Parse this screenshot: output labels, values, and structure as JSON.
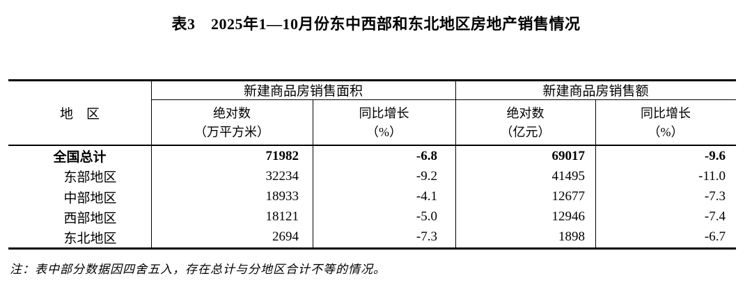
{
  "title": "表3　2025年1—10月份东中西部和东北地区房地产销售情况",
  "table": {
    "region_header": "地　区",
    "groups": [
      {
        "label": "新建商品房销售面积",
        "columns": [
          {
            "name": "绝对数",
            "unit": "（万平方米）"
          },
          {
            "name": "同比增长",
            "unit": "（%）"
          }
        ]
      },
      {
        "label": "新建商品房销售额",
        "columns": [
          {
            "name": "绝对数",
            "unit": "（亿元）"
          },
          {
            "name": "同比增长",
            "unit": "（%）"
          }
        ]
      }
    ],
    "rows": [
      {
        "region": "全国总计",
        "sales_area": "71982",
        "sales_area_yoy": "-6.8",
        "sales_value": "69017",
        "sales_value_yoy": "-9.6"
      },
      {
        "region": "东部地区",
        "sales_area": "32234",
        "sales_area_yoy": "-9.2",
        "sales_value": "41495",
        "sales_value_yoy": "-11.0"
      },
      {
        "region": "中部地区",
        "sales_area": "18933",
        "sales_area_yoy": "-4.1",
        "sales_value": "12677",
        "sales_value_yoy": "-7.3"
      },
      {
        "region": "西部地区",
        "sales_area": "18121",
        "sales_area_yoy": "-5.0",
        "sales_value": "12946",
        "sales_value_yoy": "-7.4"
      },
      {
        "region": "东北地区",
        "sales_area": "2694",
        "sales_area_yoy": "-7.3",
        "sales_value": "1898",
        "sales_value_yoy": "-6.7"
      }
    ]
  },
  "note": "注：表中部分数据因四舍五入，存在总计与分地区合计不等的情况。",
  "colors": {
    "text": "#000000",
    "border": "#000000",
    "background": "#ffffff"
  }
}
